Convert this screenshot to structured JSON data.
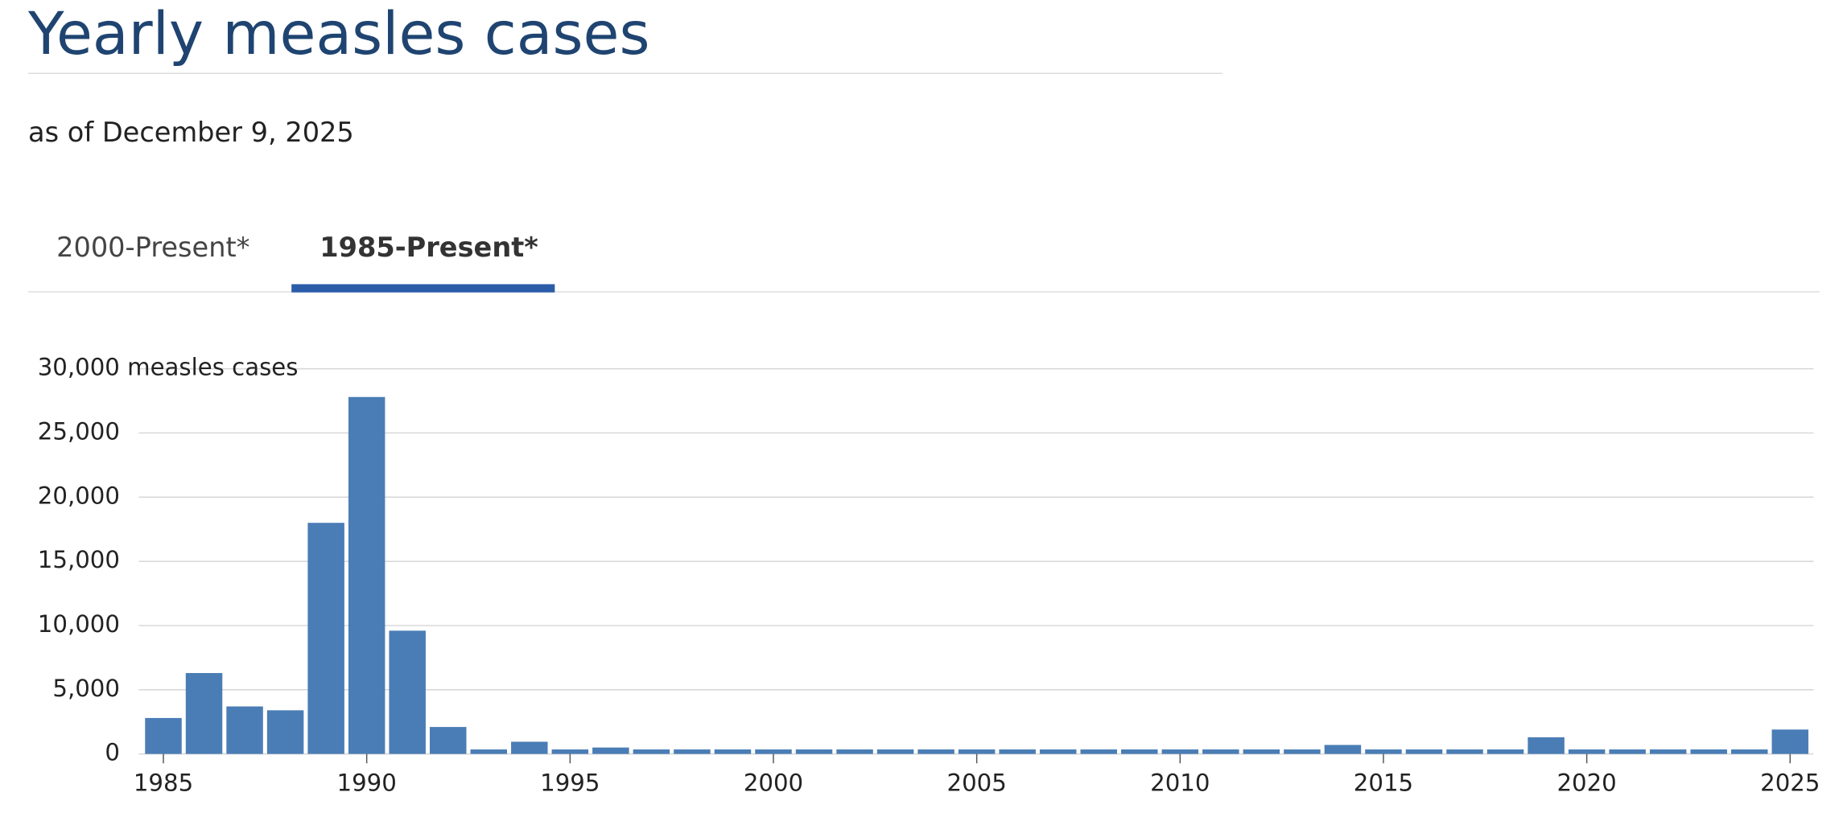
{
  "chart_data": {
    "type": "bar",
    "title": "Yearly measles cases",
    "subtitle": "as of December 9, 2025",
    "tabs": [
      "2000-Present*",
      "1985-Present*"
    ],
    "x": [
      1985,
      1986,
      1987,
      1988,
      1989,
      1990,
      1991,
      1992,
      1993,
      1994,
      1995,
      1996,
      1997,
      1998,
      1999,
      2000,
      2001,
      2002,
      2003,
      2004,
      2005,
      2006,
      2007,
      2008,
      2009,
      2010,
      2011,
      2012,
      2013,
      2014,
      2015,
      2016,
      2017,
      2018,
      2019,
      2020,
      2021,
      2022,
      2023,
      2024,
      2025
    ],
    "values": [
      2800,
      6300,
      3700,
      3400,
      18000,
      27800,
      9600,
      2100,
      350,
      950,
      350,
      500,
      350,
      350,
      350,
      350,
      350,
      350,
      350,
      350,
      350,
      350,
      350,
      350,
      350,
      350,
      350,
      350,
      350,
      700,
      350,
      350,
      350,
      350,
      1300,
      350,
      350,
      350,
      350,
      350,
      1900
    ],
    "color": "#4a7db5",
    "xlim": [
      1984.5,
      2025.5
    ],
    "xticks": [
      1985,
      1990,
      1995,
      2000,
      2005,
      2010,
      2015,
      2020,
      2025
    ],
    "ylim": [
      0,
      30000
    ],
    "yticks": [
      0,
      {
        "value": 5000,
        "label": "5,000"
      },
      {
        "value": 10000,
        "label": "10,000"
      },
      {
        "value": 15000,
        "label": "15,000"
      },
      {
        "value": 20000,
        "label": "20,000"
      },
      {
        "value": 25000,
        "label": "25,000"
      },
      {
        "value": 30000,
        "label": "30,000 measles cases"
      }
    ],
    "grid": true
  }
}
